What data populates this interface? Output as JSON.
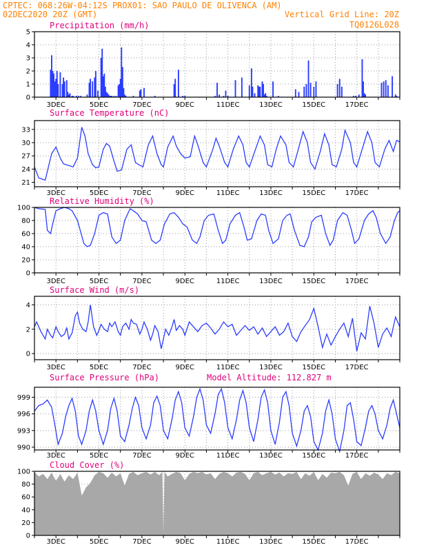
{
  "header": {
    "left_line1": "CPTEC:   068:26W-04:12S   PROX01: SAO PAULO DE OLIVENCA (AM)",
    "left_line2": "02DEC2020 20Z (GMT)",
    "right_line2": "Vertical Grid Line: 20Z",
    "right_line3": "TQ0126L028"
  },
  "x_axis_labels": [
    "3DEC",
    "5DEC",
    "7DEC",
    "9DEC",
    "11DEC",
    "13DEC",
    "15DEC",
    "17DEC"
  ],
  "colors": {
    "header": "#ff8000",
    "title": "#e0007a",
    "line": "#2a3cff",
    "bars": "#2a3cff",
    "cloud": "#a8a8a8",
    "grid": "#999999"
  },
  "chart_data": [
    {
      "type": "bar",
      "title": "Precipitation (mm/h)",
      "ylim": [
        0,
        5
      ],
      "yticks": [
        0,
        1,
        2,
        3,
        4,
        5
      ],
      "x_unit": "days since 02DEC2020 20Z",
      "x": [
        0.75,
        0.8,
        0.85,
        0.9,
        0.95,
        1.0,
        1.05,
        1.1,
        1.2,
        1.3,
        1.35,
        1.4,
        1.5,
        1.55,
        1.6,
        1.65,
        1.75,
        1.8,
        1.95,
        2.05,
        2.15,
        2.45,
        2.55,
        2.6,
        2.7,
        2.8,
        2.85,
        2.95,
        3.1,
        3.15,
        3.2,
        3.25,
        3.3,
        3.35,
        3.4,
        3.45,
        3.5,
        3.55,
        3.6,
        3.7,
        3.8,
        3.9,
        3.95,
        4.0,
        4.05,
        4.1,
        4.15,
        4.2,
        4.25,
        4.6,
        4.9,
        4.95,
        5.1,
        5.6,
        6.5,
        6.55,
        6.7,
        6.9,
        7.0,
        8.4,
        8.5,
        8.6,
        8.8,
        8.9,
        9.0,
        9.35,
        9.65,
        10.0,
        10.1,
        10.15,
        10.25,
        10.4,
        10.45,
        10.5,
        10.6,
        10.65,
        10.7,
        10.75,
        10.8,
        11.1,
        11.35,
        12.15,
        12.3,
        12.55,
        12.65,
        12.75,
        12.85,
        13.0,
        13.1,
        14.1,
        14.2,
        14.3,
        14.85,
        14.95,
        15.1,
        15.25,
        15.3,
        15.35,
        15.4,
        16.15,
        16.25,
        16.35,
        16.45,
        16.65,
        16.8,
        16.85
      ],
      "values": [
        2.1,
        3.2,
        2.0,
        1.8,
        1.2,
        1.4,
        2.0,
        1.0,
        1.9,
        1.0,
        1.5,
        1.2,
        1.3,
        0.4,
        0.2,
        0.3,
        0.1,
        0.1,
        0.1,
        0.1,
        0.1,
        0.2,
        1.1,
        1.4,
        1.2,
        1.5,
        2.0,
        0.5,
        3.0,
        3.7,
        1.6,
        1.8,
        0.8,
        0.4,
        0.3,
        0.2,
        0.1,
        0.1,
        0.1,
        0.1,
        0.1,
        0.9,
        1.0,
        1.4,
        3.8,
        2.3,
        0.7,
        0.2,
        0.1,
        0.1,
        0.5,
        0.6,
        0.7,
        0.1,
        1.0,
        1.4,
        2.1,
        0.1,
        0.1,
        0.1,
        1.1,
        0.2,
        0.1,
        0.5,
        0.1,
        1.3,
        1.5,
        0.9,
        2.2,
        0.8,
        0.3,
        0.9,
        0.8,
        0.8,
        1.2,
        1.0,
        0.2,
        0.3,
        0.1,
        1.2,
        0.1,
        0.6,
        0.4,
        0.8,
        1.0,
        2.8,
        1.1,
        0.8,
        1.2,
        1.0,
        1.4,
        0.8,
        0.1,
        0.1,
        0.2,
        2.9,
        1.2,
        0.3,
        0.2,
        1.1,
        1.2,
        1.3,
        0.9,
        1.6,
        0.2,
        0.1
      ]
    },
    {
      "type": "line",
      "title": "Surface Temperature (nC)",
      "ylim": [
        20,
        35
      ],
      "yticks": [
        21,
        24,
        27,
        30,
        33
      ],
      "x_unit": "days since 02DEC2020 20Z",
      "x": [
        0,
        0.2,
        0.5,
        0.8,
        1.0,
        1.2,
        1.35,
        1.6,
        1.8,
        2.0,
        2.2,
        2.35,
        2.5,
        2.7,
        2.85,
        3.0,
        3.2,
        3.35,
        3.5,
        3.7,
        3.85,
        4.05,
        4.3,
        4.5,
        4.7,
        4.85,
        5.05,
        5.3,
        5.5,
        5.7,
        5.9,
        6.0,
        6.2,
        6.45,
        6.6,
        6.8,
        7.0,
        7.25,
        7.45,
        7.6,
        7.85,
        8.0,
        8.3,
        8.45,
        8.6,
        8.85,
        9.0,
        9.25,
        9.5,
        9.7,
        9.85,
        10.0,
        10.25,
        10.5,
        10.7,
        10.85,
        11.05,
        11.25,
        11.45,
        11.7,
        11.85,
        12.05,
        12.25,
        12.5,
        12.7,
        12.85,
        13.05,
        13.3,
        13.5,
        13.7,
        13.85,
        14.05,
        14.3,
        14.45,
        14.7,
        14.85,
        15.0,
        15.25,
        15.5,
        15.7,
        15.85,
        16.05,
        16.3,
        16.5,
        16.7,
        16.85,
        17.0
      ],
      "values": [
        24.5,
        22.0,
        21.5,
        27.5,
        29,
        26.5,
        25.2,
        24.8,
        24.5,
        26.5,
        33.5,
        31.5,
        27.5,
        25,
        24.3,
        24.5,
        28.5,
        29.8,
        29.2,
        25.8,
        23.5,
        23.8,
        28.5,
        29.5,
        25.5,
        25.0,
        24.5,
        29.5,
        31.5,
        27.5,
        25,
        24.5,
        29,
        31.5,
        29.2,
        27.5,
        26.5,
        26.8,
        31.5,
        29.5,
        25.5,
        24.5,
        28.5,
        31.0,
        29.2,
        25.5,
        24.5,
        28.5,
        31.5,
        29.5,
        25.5,
        24.5,
        28,
        31.5,
        29.5,
        25,
        24.5,
        28.5,
        31.5,
        29.5,
        25.5,
        24.5,
        28,
        32.5,
        30,
        25.5,
        24,
        28,
        32,
        29.5,
        25,
        24.5,
        28.5,
        32.8,
        30,
        25.5,
        24.5,
        28.5,
        32.5,
        30,
        25.5,
        24.5,
        28.5,
        30.5,
        28.0,
        30.5,
        30.2
      ]
    },
    {
      "type": "line",
      "title": "Relative Humidity (%)",
      "ylim": [
        0,
        100
      ],
      "yticks": [
        0,
        20,
        40,
        60,
        80,
        100
      ],
      "x_unit": "days since 02DEC2020 20Z",
      "x": [
        0,
        0.2,
        0.5,
        0.6,
        0.75,
        0.85,
        1.0,
        1.2,
        1.4,
        1.6,
        1.75,
        2.0,
        2.3,
        2.45,
        2.6,
        2.8,
        3.0,
        3.2,
        3.4,
        3.6,
        3.8,
        4.0,
        4.2,
        4.45,
        4.6,
        4.8,
        5.0,
        5.2,
        5.45,
        5.65,
        5.85,
        6.05,
        6.3,
        6.5,
        6.7,
        6.9,
        7.1,
        7.35,
        7.55,
        7.7,
        7.9,
        8.1,
        8.35,
        8.55,
        8.75,
        8.9,
        9.1,
        9.35,
        9.55,
        9.75,
        9.9,
        10.1,
        10.35,
        10.55,
        10.75,
        10.9,
        11.1,
        11.35,
        11.55,
        11.75,
        11.9,
        12.1,
        12.35,
        12.55,
        12.75,
        12.9,
        13.1,
        13.35,
        13.55,
        13.75,
        13.9,
        14.1,
        14.35,
        14.55,
        14.75,
        14.9,
        15.1,
        15.35,
        15.55,
        15.75,
        15.9,
        16.1,
        16.35,
        16.55,
        16.75,
        16.9,
        17.0
      ],
      "values": [
        100,
        98,
        97,
        65,
        60,
        75,
        95,
        98,
        100,
        98,
        95,
        80,
        45,
        40,
        42,
        60,
        88,
        92,
        90,
        55,
        45,
        50,
        80,
        98,
        95,
        90,
        80,
        78,
        50,
        45,
        50,
        75,
        90,
        92,
        85,
        75,
        70,
        50,
        45,
        55,
        80,
        88,
        90,
        65,
        45,
        50,
        75,
        88,
        92,
        70,
        50,
        52,
        80,
        90,
        88,
        65,
        45,
        52,
        80,
        88,
        90,
        65,
        42,
        40,
        55,
        78,
        85,
        88,
        60,
        42,
        50,
        80,
        92,
        88,
        65,
        45,
        52,
        80,
        90,
        95,
        85,
        60,
        45,
        55,
        80,
        92,
        95
      ]
    },
    {
      "type": "line",
      "title": "Surface Wind (m/s)",
      "ylim": [
        -0.5,
        4.7
      ],
      "yticks": [
        0,
        2,
        4
      ],
      "x_unit": "days since 02DEC2020 20Z",
      "x": [
        0,
        0.1,
        0.3,
        0.5,
        0.6,
        0.75,
        0.85,
        1.0,
        1.1,
        1.25,
        1.4,
        1.5,
        1.6,
        1.75,
        1.9,
        2.0,
        2.1,
        2.25,
        2.4,
        2.5,
        2.6,
        2.75,
        2.9,
        3.0,
        3.1,
        3.25,
        3.4,
        3.5,
        3.6,
        3.75,
        3.9,
        4.0,
        4.1,
        4.25,
        4.4,
        4.5,
        4.6,
        4.75,
        4.9,
        5.0,
        5.1,
        5.25,
        5.4,
        5.5,
        5.6,
        5.75,
        5.9,
        6.0,
        6.1,
        6.25,
        6.4,
        6.5,
        6.6,
        6.75,
        6.9,
        7.0,
        7.2,
        7.4,
        7.6,
        7.8,
        8.0,
        8.2,
        8.4,
        8.6,
        8.8,
        9.0,
        9.2,
        9.4,
        9.6,
        9.8,
        10.0,
        10.2,
        10.4,
        10.6,
        10.8,
        11.0,
        11.2,
        11.4,
        11.6,
        11.8,
        12.0,
        12.2,
        12.4,
        12.6,
        12.8,
        13.0,
        13.2,
        13.4,
        13.6,
        13.8,
        14.0,
        14.2,
        14.4,
        14.6,
        14.8,
        15.0,
        15.2,
        15.4,
        15.6,
        15.8,
        16.0,
        16.2,
        16.4,
        16.6,
        16.8,
        17.0
      ],
      "values": [
        2.2,
        2.6,
        1.8,
        1.2,
        2.0,
        1.5,
        1.3,
        2.2,
        1.8,
        1.4,
        1.6,
        2.1,
        1.2,
        1.7,
        3.1,
        3.4,
        2.5,
        2.0,
        1.8,
        2.6,
        4.0,
        2.2,
        1.5,
        1.9,
        2.4,
        2.0,
        1.8,
        2.5,
        2.2,
        2.6,
        1.8,
        1.5,
        2.2,
        2.5,
        2.0,
        2.8,
        2.5,
        2.4,
        1.6,
        2.0,
        2.6,
        2.0,
        1.1,
        1.6,
        2.3,
        1.8,
        0.4,
        1.2,
        2.0,
        1.5,
        2.2,
        2.8,
        1.9,
        2.3,
        2.0,
        1.5,
        2.6,
        2.2,
        1.8,
        2.3,
        2.5,
        2.1,
        1.6,
        2.0,
        2.6,
        2.2,
        2.4,
        1.5,
        1.9,
        2.3,
        1.9,
        2.2,
        1.6,
        2.1,
        1.4,
        1.8,
        2.2,
        1.5,
        1.8,
        2.5,
        1.4,
        1.0,
        1.8,
        2.3,
        2.8,
        3.7,
        2.2,
        0.5,
        1.6,
        0.7,
        1.4,
        2.0,
        2.5,
        1.4,
        2.9,
        0.2,
        1.7,
        1.2,
        3.9,
        2.5,
        0.5,
        1.6,
        2.1,
        1.4,
        3.0,
        2.2
      ]
    },
    {
      "type": "line",
      "title": "Surface Pressure (hPa)",
      "annotation": "Model Altitude: 112.827 m",
      "ylim": [
        989.5,
        1000.8
      ],
      "yticks": [
        990,
        993,
        996,
        999
      ],
      "x_unit": "days since 02DEC2020 20Z",
      "x": [
        0,
        0.2,
        0.4,
        0.6,
        0.8,
        0.95,
        1.1,
        1.3,
        1.45,
        1.6,
        1.75,
        1.9,
        2.05,
        2.2,
        2.4,
        2.55,
        2.7,
        2.85,
        3.0,
        3.2,
        3.4,
        3.55,
        3.7,
        3.85,
        4.0,
        4.2,
        4.4,
        4.55,
        4.7,
        4.85,
        5.0,
        5.2,
        5.4,
        5.55,
        5.7,
        5.85,
        6.0,
        6.2,
        6.4,
        6.55,
        6.7,
        6.85,
        7.0,
        7.2,
        7.4,
        7.55,
        7.7,
        7.85,
        8.0,
        8.2,
        8.4,
        8.55,
        8.7,
        8.85,
        9.0,
        9.2,
        9.4,
        9.55,
        9.7,
        9.85,
        10.0,
        10.2,
        10.4,
        10.55,
        10.7,
        10.85,
        11.0,
        11.2,
        11.4,
        11.55,
        11.7,
        11.85,
        12.0,
        12.2,
        12.4,
        12.55,
        12.7,
        12.85,
        13.0,
        13.2,
        13.4,
        13.55,
        13.7,
        13.85,
        14.0,
        14.2,
        14.4,
        14.55,
        14.7,
        14.85,
        15.0,
        15.2,
        15.4,
        15.55,
        15.7,
        15.85,
        16.0,
        16.2,
        16.4,
        16.55,
        16.7,
        16.85,
        17.0
      ],
      "values": [
        996.5,
        997.5,
        997.8,
        998.5,
        997.2,
        994,
        990.5,
        992.5,
        995.5,
        997.5,
        998.8,
        996.5,
        992,
        990.5,
        993,
        996.5,
        998.5,
        996.5,
        993,
        990.5,
        993,
        997,
        998.8,
        996.5,
        992,
        991,
        994,
        997,
        999,
        997.5,
        993.5,
        991.5,
        994,
        998,
        999.2,
        997.5,
        993,
        991.5,
        995,
        998.5,
        1000,
        998,
        993.5,
        992,
        995.5,
        999,
        1000.5,
        998.5,
        994,
        992.5,
        996,
        999.5,
        1000.5,
        998,
        993.5,
        991.5,
        995,
        998.5,
        1000.2,
        998,
        993.5,
        991,
        995,
        999,
        1000.3,
        998,
        993,
        990.5,
        994.5,
        999,
        1000,
        997.5,
        992.5,
        990.2,
        993,
        996.5,
        997.5,
        995.5,
        991,
        989.5,
        992.5,
        996.5,
        998.5,
        996,
        991.5,
        989.2,
        993,
        997.5,
        998,
        995,
        991,
        990.3,
        993.5,
        996.5,
        997.5,
        996,
        993,
        991.5,
        994,
        997,
        998.5,
        996,
        993.5
      ]
    },
    {
      "type": "area",
      "title": "Cloud Cover (%)",
      "ylim": [
        0,
        100
      ],
      "yticks": [
        0,
        20,
        40,
        60,
        80,
        100
      ],
      "x_unit": "days since 02DEC2020 20Z",
      "x": [
        0,
        0.2,
        0.4,
        0.6,
        0.8,
        1.0,
        1.2,
        1.4,
        1.6,
        1.8,
        2.0,
        2.2,
        2.4,
        2.6,
        2.8,
        3.0,
        3.2,
        3.4,
        3.6,
        3.8,
        4.0,
        4.2,
        4.4,
        4.6,
        4.8,
        5.0,
        5.2,
        5.4,
        5.6,
        5.8,
        5.95,
        6.0,
        6.05,
        6.2,
        6.4,
        6.6,
        6.8,
        7.0,
        7.2,
        7.4,
        7.6,
        7.8,
        8.0,
        8.2,
        8.4,
        8.6,
        8.8,
        9.0,
        9.2,
        9.4,
        9.6,
        9.8,
        10.0,
        10.2,
        10.4,
        10.6,
        10.8,
        11.0,
        11.2,
        11.4,
        11.6,
        11.8,
        12.0,
        12.2,
        12.4,
        12.6,
        12.8,
        13.0,
        13.2,
        13.4,
        13.6,
        13.8,
        14.0,
        14.2,
        14.4,
        14.6,
        14.8,
        15.0,
        15.2,
        15.4,
        15.6,
        15.8,
        16.0,
        16.2,
        16.4,
        16.6,
        16.8,
        17.0
      ],
      "values": [
        99,
        92,
        96,
        88,
        98,
        85,
        96,
        84,
        94,
        88,
        98,
        62,
        75,
        82,
        94,
        99,
        97,
        90,
        98,
        92,
        97,
        78,
        96,
        99,
        94,
        97,
        99,
        95,
        99,
        94,
        99,
        2,
        99,
        92,
        96,
        99,
        97,
        86,
        96,
        99,
        97,
        99,
        95,
        97,
        88,
        96,
        99,
        97,
        92,
        98,
        99,
        96,
        86,
        97,
        99,
        94,
        97,
        99,
        95,
        98,
        92,
        97,
        96,
        99,
        88,
        97,
        93,
        99,
        86,
        96,
        90,
        98,
        97,
        99,
        94,
        78,
        96,
        99,
        88,
        97,
        93,
        98,
        95,
        88,
        97,
        94,
        99,
        97
      ]
    }
  ]
}
